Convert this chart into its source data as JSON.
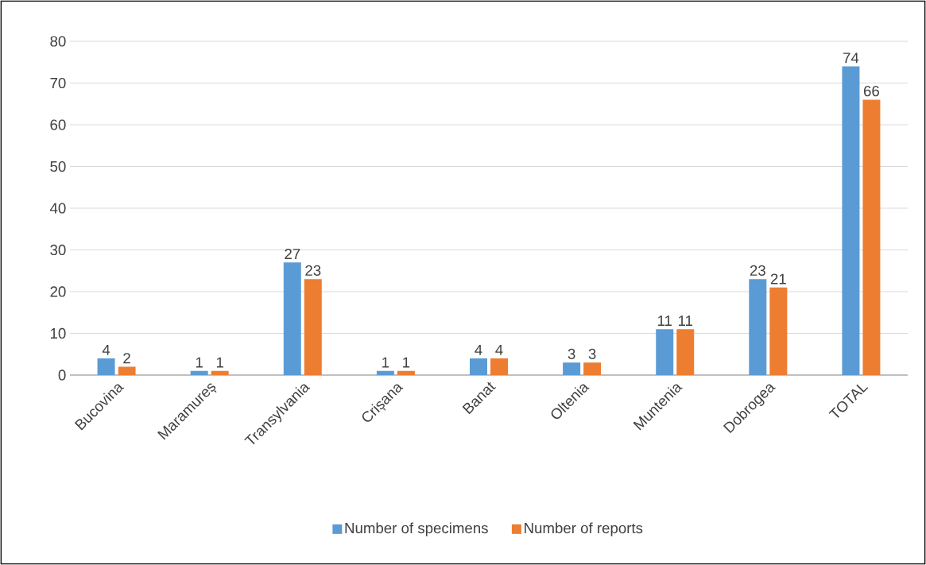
{
  "chart_data": {
    "type": "bar",
    "categories": [
      "Bucovina",
      "Maramureș",
      "Transylvania",
      "Crișana",
      "Banat",
      "Oltenia",
      "Muntenia",
      "Dobrogea",
      "TOTAL"
    ],
    "series": [
      {
        "name": "Number of specimens",
        "color": "#5b9bd5",
        "values": [
          4,
          1,
          27,
          1,
          4,
          3,
          11,
          23,
          74
        ]
      },
      {
        "name": "Number of reports",
        "color": "#ed7d31",
        "values": [
          2,
          1,
          23,
          1,
          4,
          3,
          11,
          21,
          66
        ]
      }
    ],
    "ylim": [
      0,
      80
    ],
    "yticks": [
      0,
      10,
      20,
      30,
      40,
      50,
      60,
      70,
      80
    ],
    "grid": "y",
    "legend": "bottom",
    "data_labels": true
  }
}
